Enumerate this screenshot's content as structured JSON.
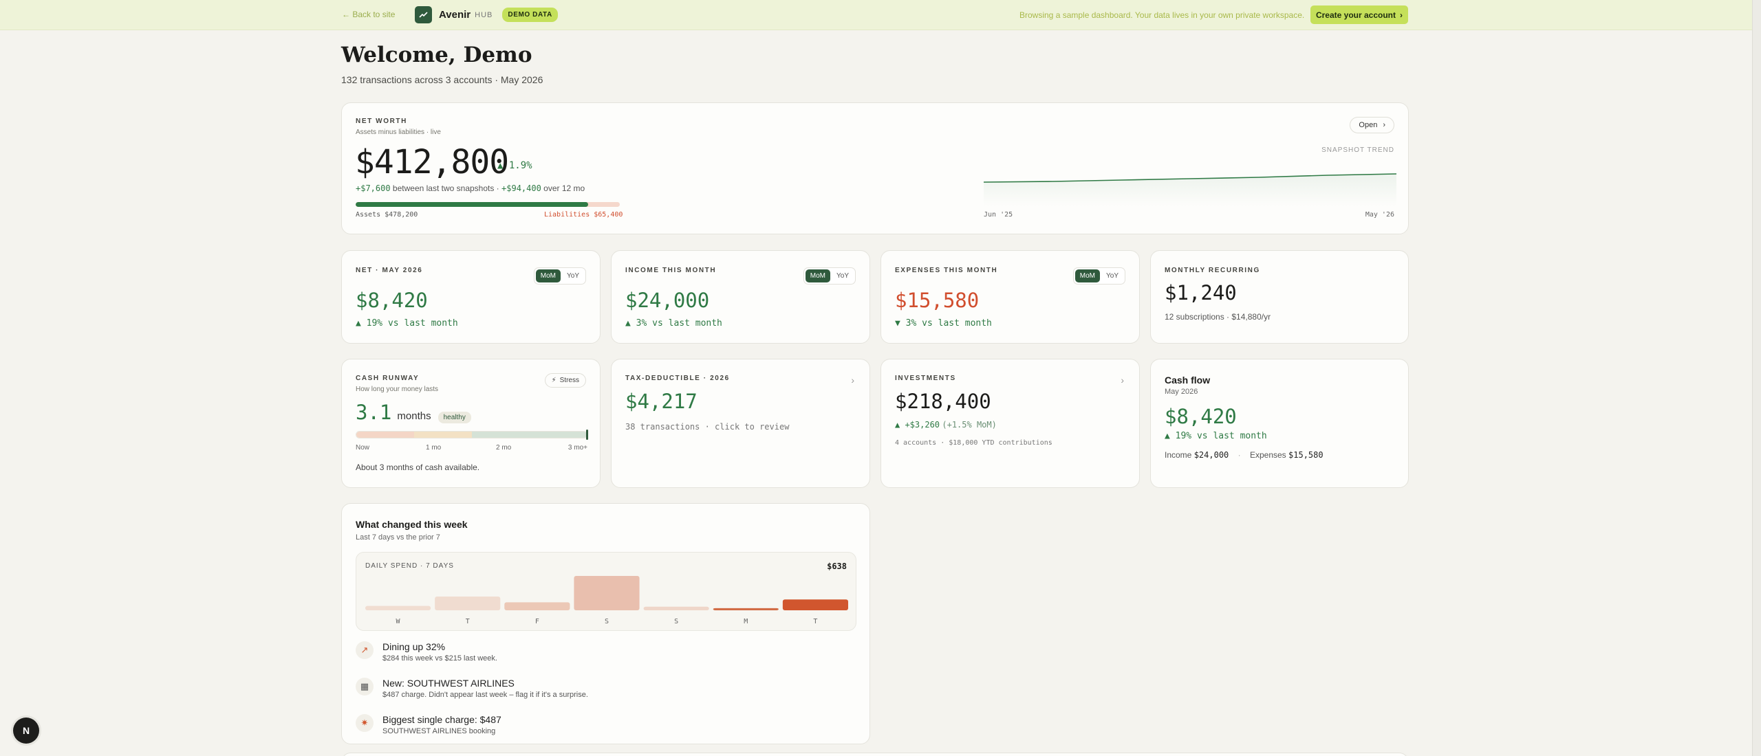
{
  "banner": {
    "back_label": "← Back to site",
    "brand_name": "Avenir",
    "brand_suffix": "HUB",
    "demo_badge": "DEMO DATA",
    "message": "Browsing a sample dashboard. Your data lives in your own private workspace.",
    "create_label": "Create your account",
    "create_chevron": "›"
  },
  "welcome": {
    "title": "Welcome, Demo",
    "subtitle": "132 transactions across 3 accounts · May 2026"
  },
  "net_worth": {
    "label": "NET WORTH",
    "sublabel": "Assets minus liabilities · live",
    "value": "$412,800",
    "change": "▲ 1.9%",
    "delta_snapshots": "+$7,600",
    "delta_snapshots_text": "between last two snapshots ·",
    "delta_year": "+$94,400",
    "delta_year_text": "over 12 mo",
    "assets_label": "Assets $478,200",
    "liabilities_label": "Liabilities $65,400",
    "assets_value": 478200,
    "liabilities_value": 65400,
    "open_label": "Open",
    "trend_label": "SNAPSHOT TREND",
    "trend_start": "Jun '25",
    "trend_end": "May '26"
  },
  "net_month": {
    "label": "NET · MAY 2026",
    "toggle": [
      "MoM",
      "YoY"
    ],
    "value": "$8,420",
    "change": "▲ 19% vs last month"
  },
  "income": {
    "label": "INCOME THIS MONTH",
    "toggle": [
      "MoM",
      "YoY"
    ],
    "value": "$24,000",
    "change": "▲ 3% vs last month"
  },
  "expenses": {
    "label": "EXPENSES THIS MONTH",
    "toggle": [
      "MoM",
      "YoY"
    ],
    "value": "$15,580",
    "change": "▼ 3% vs last month"
  },
  "recurring": {
    "label": "MONTHLY RECURRING",
    "value": "$1,240",
    "detail": "12 subscriptions · $14,880/yr"
  },
  "runway": {
    "label": "CASH RUNWAY",
    "sublabel": "How long your money lasts",
    "stress_label": "Stress",
    "value": "3.1",
    "unit": "months",
    "badge": "healthy",
    "months": 3.1,
    "scale_max_months": 3,
    "ticks": [
      "Now",
      "1 mo",
      "2 mo",
      "3 mo+"
    ],
    "note": "About 3 months of cash available."
  },
  "tax": {
    "label": "TAX-DEDUCTIBLE · 2026",
    "value": "$4,217",
    "detail": "38 transactions · click to review"
  },
  "investments": {
    "label": "INVESTMENTS",
    "value": "$218,400",
    "change": "▲ +$3,260",
    "change_pct": "(+1.5% MoM)",
    "detail": "4 accounts · $18,000 YTD contributions"
  },
  "cashflow": {
    "title": "Cash flow",
    "subtitle": "May 2026",
    "value": "$8,420",
    "change": "▲ 19% vs last month",
    "income_label": "Income",
    "income_value": "$24,000",
    "expenses_label": "Expenses",
    "expenses_value": "$15,580"
  },
  "weekly": {
    "title": "What changed this week",
    "subtitle": "Last 7 days vs the prior 7",
    "chart_label": "DAILY SPEND · 7 DAYS",
    "chart_total": "$638",
    "items": [
      {
        "icon": "↗",
        "title": "Dining up 32%",
        "detail": "$284 this week vs $215 last week."
      },
      {
        "icon": "▦",
        "title": "New: SOUTHWEST AIRLINES",
        "detail": "$487 charge. Didn't appear last week – flag it if it's a surprise."
      },
      {
        "icon": "✷",
        "title": "Biggest single charge: $487",
        "detail": "SOUTHWEST AIRLINES booking"
      }
    ]
  },
  "chart_data": {
    "type": "bar",
    "categories": [
      "W",
      "T",
      "F",
      "S",
      "S",
      "M",
      "T"
    ],
    "values": [
      12,
      38,
      22,
      95,
      10,
      6,
      30
    ],
    "highlight_index": 6,
    "colors": [
      "#f1ddd1",
      "#f0dcd0",
      "#ecc8b6",
      "#e9bfae",
      "#efd6c9",
      "#d26c45",
      "#d1562e"
    ]
  },
  "colors": {
    "accent_green": "#2f5a3c",
    "positive": "#2f7a45",
    "negative": "#d14e2e",
    "demo_lime": "#c5e05a"
  },
  "fab": {
    "label": "N"
  }
}
